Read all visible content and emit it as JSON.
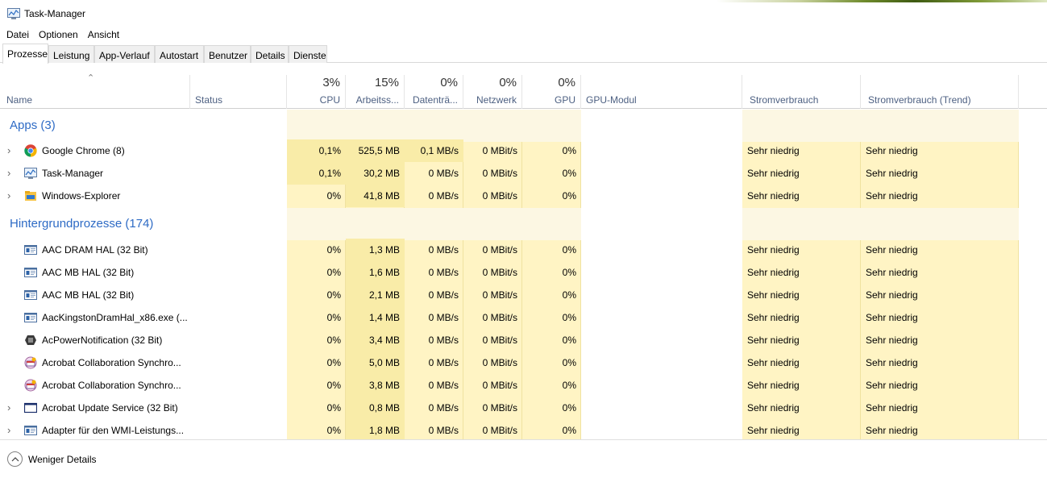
{
  "window": {
    "title": "Task-Manager"
  },
  "menu": [
    "Datei",
    "Optionen",
    "Ansicht"
  ],
  "tabs": [
    "Prozesse",
    "Leistung",
    "App-Verlauf",
    "Autostart",
    "Benutzer",
    "Details",
    "Dienste"
  ],
  "active_tab": "Prozesse",
  "columns": {
    "name": "Name",
    "status": "Status",
    "cpu": {
      "pct": "3%",
      "label": "CPU"
    },
    "memory": {
      "pct": "15%",
      "label": "Arbeitss..."
    },
    "disk": {
      "pct": "0%",
      "label": "Datenträ..."
    },
    "network": {
      "pct": "0%",
      "label": "Netzwerk"
    },
    "gpu": {
      "pct": "0%",
      "label": "GPU"
    },
    "gpu_engine": "GPU-Modul",
    "power": "Stromverbrauch",
    "power_trend": "Stromverbrauch (Trend)"
  },
  "groups": {
    "apps": {
      "title": "Apps (3)",
      "rows": [
        {
          "name": "Google Chrome (8)",
          "icon": "chrome-icon",
          "expand": true,
          "cpu": "0,1%",
          "mem": "525,5 MB",
          "disk": "0,1 MB/s",
          "net": "0 MBit/s",
          "gpu": "0%",
          "power": "Sehr niedrig",
          "trend": "Sehr niedrig"
        },
        {
          "name": "Task-Manager",
          "icon": "task-manager-icon",
          "expand": true,
          "cpu": "0,1%",
          "mem": "30,2 MB",
          "disk": "0 MB/s",
          "net": "0 MBit/s",
          "gpu": "0%",
          "power": "Sehr niedrig",
          "trend": "Sehr niedrig"
        },
        {
          "name": "Windows-Explorer",
          "icon": "folder-icon",
          "expand": true,
          "cpu": "0%",
          "mem": "41,8 MB",
          "disk": "0 MB/s",
          "net": "0 MBit/s",
          "gpu": "0%",
          "power": "Sehr niedrig",
          "trend": "Sehr niedrig"
        }
      ]
    },
    "background": {
      "title": "Hintergrundprozesse (174)",
      "rows": [
        {
          "name": "AAC DRAM HAL (32 Bit)",
          "icon": "app-window-icon",
          "expand": false,
          "cpu": "0%",
          "mem": "1,3 MB",
          "disk": "0 MB/s",
          "net": "0 MBit/s",
          "gpu": "0%",
          "power": "Sehr niedrig",
          "trend": "Sehr niedrig"
        },
        {
          "name": "AAC MB HAL (32 Bit)",
          "icon": "app-window-icon",
          "expand": false,
          "cpu": "0%",
          "mem": "1,6 MB",
          "disk": "0 MB/s",
          "net": "0 MBit/s",
          "gpu": "0%",
          "power": "Sehr niedrig",
          "trend": "Sehr niedrig"
        },
        {
          "name": "AAC MB HAL (32 Bit)",
          "icon": "app-window-icon",
          "expand": false,
          "cpu": "0%",
          "mem": "2,1 MB",
          "disk": "0 MB/s",
          "net": "0 MBit/s",
          "gpu": "0%",
          "power": "Sehr niedrig",
          "trend": "Sehr niedrig"
        },
        {
          "name": "AacKingstonDramHal_x86.exe (...",
          "icon": "app-window-icon",
          "expand": false,
          "cpu": "0%",
          "mem": "1,4 MB",
          "disk": "0 MB/s",
          "net": "0 MBit/s",
          "gpu": "0%",
          "power": "Sehr niedrig",
          "trend": "Sehr niedrig"
        },
        {
          "name": "AcPowerNotification (32 Bit)",
          "icon": "power-notification-icon",
          "expand": false,
          "cpu": "0%",
          "mem": "3,4 MB",
          "disk": "0 MB/s",
          "net": "0 MBit/s",
          "gpu": "0%",
          "power": "Sehr niedrig",
          "trend": "Sehr niedrig"
        },
        {
          "name": "Acrobat Collaboration Synchro...",
          "icon": "acrobat-sync-icon",
          "expand": false,
          "cpu": "0%",
          "mem": "5,0 MB",
          "disk": "0 MB/s",
          "net": "0 MBit/s",
          "gpu": "0%",
          "power": "Sehr niedrig",
          "trend": "Sehr niedrig"
        },
        {
          "name": "Acrobat Collaboration Synchro...",
          "icon": "acrobat-sync-icon",
          "expand": false,
          "cpu": "0%",
          "mem": "3,8 MB",
          "disk": "0 MB/s",
          "net": "0 MBit/s",
          "gpu": "0%",
          "power": "Sehr niedrig",
          "trend": "Sehr niedrig"
        },
        {
          "name": "Acrobat Update Service (32 Bit)",
          "icon": "service-window-icon",
          "expand": true,
          "cpu": "0%",
          "mem": "0,8 MB",
          "disk": "0 MB/s",
          "net": "0 MBit/s",
          "gpu": "0%",
          "power": "Sehr niedrig",
          "trend": "Sehr niedrig"
        },
        {
          "name": "Adapter für den WMI-Leistungs...",
          "icon": "app-window-icon",
          "expand": true,
          "cpu": "0%",
          "mem": "1,8 MB",
          "disk": "0 MB/s",
          "net": "0 MBit/s",
          "gpu": "0%",
          "power": "Sehr niedrig",
          "trend": "Sehr niedrig"
        }
      ]
    }
  },
  "footer": {
    "label": "Weniger Details",
    "icon": "chevron-up-circle-icon"
  },
  "colors": {
    "heat_low": "#fff4c4",
    "heat_mid": "#f9eca8",
    "heat_group": "#fcf7e3",
    "group_title": "#2e6bc5",
    "header_text": "#4d6082"
  }
}
